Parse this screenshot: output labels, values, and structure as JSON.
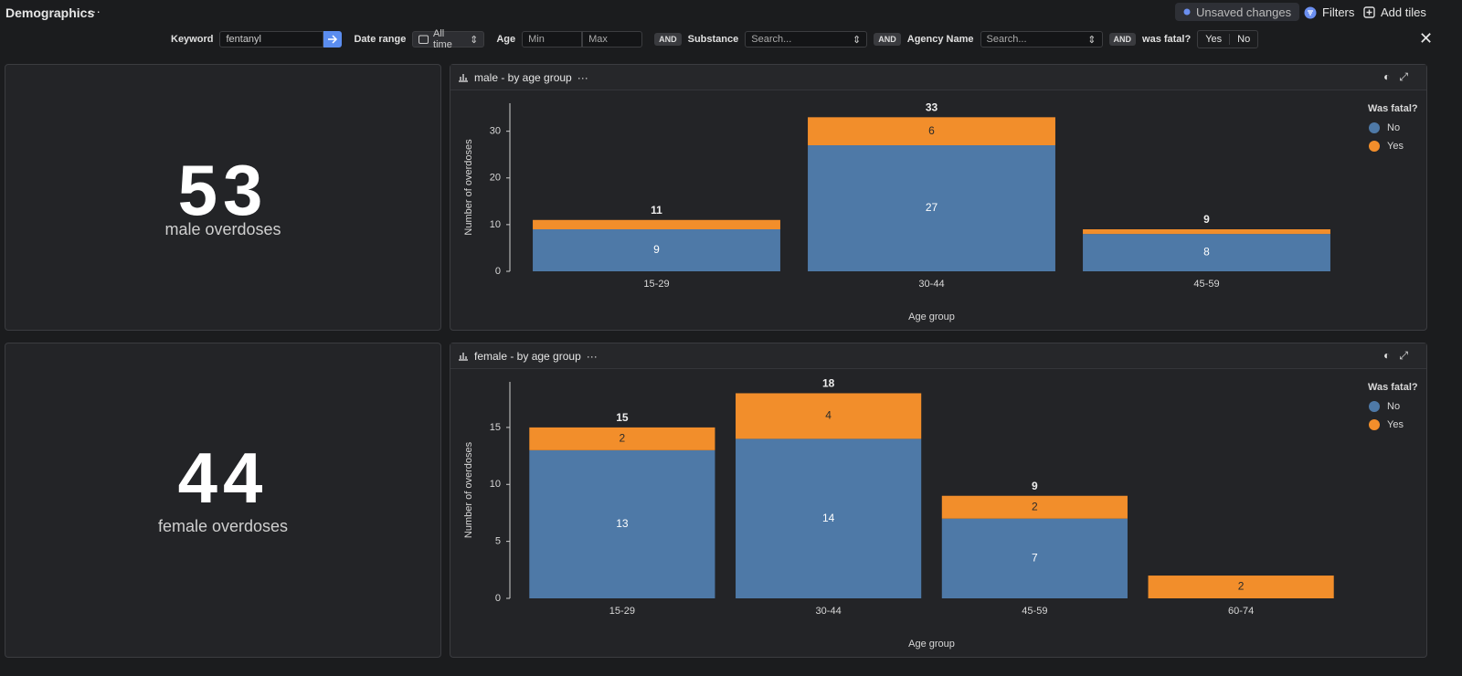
{
  "header": {
    "title": "Demographics",
    "status": "Unsaved changes",
    "filters_button": "Filters",
    "add_tiles_button": "Add tiles"
  },
  "filters": {
    "keyword_label": "Keyword",
    "keyword_value": "fentanyl",
    "date_range_label": "Date range",
    "date_range_value": "All time",
    "age_label": "Age",
    "age_min_placeholder": "Min",
    "age_max_placeholder": "Max",
    "connectors": [
      "AND",
      "AND",
      "AND"
    ],
    "substance_label": "Substance",
    "substance_placeholder": "Search...",
    "agency_label": "Agency Name",
    "agency_placeholder": "Search...",
    "fatal_label": "was fatal?",
    "fatal_options": [
      "Yes",
      "No"
    ]
  },
  "kpis": [
    {
      "value": 53,
      "label": "male overdoses"
    },
    {
      "value": 44,
      "label": "female overdoses"
    }
  ],
  "chart_data": [
    {
      "type": "bar",
      "stacked": true,
      "title": "male - by age group",
      "xlabel": "Age group",
      "ylabel": "Number of overdoses",
      "categories": [
        "15-29",
        "30-44",
        "45-59"
      ],
      "series": [
        {
          "name": "No",
          "color": "#4e79a7",
          "values": [
            9,
            27,
            8
          ]
        },
        {
          "name": "Yes",
          "color": "#f28e2b",
          "values": [
            2,
            6,
            1
          ]
        }
      ],
      "totals": [
        11,
        33,
        9
      ],
      "ylim": [
        0,
        36
      ],
      "yticks": [
        0,
        10,
        20,
        30
      ],
      "legend_title": "Was fatal?",
      "legend": "right",
      "grid": false
    },
    {
      "type": "bar",
      "stacked": true,
      "title": "female - by age group",
      "xlabel": "Age group",
      "ylabel": "Number of overdoses",
      "categories": [
        "15-29",
        "30-44",
        "45-59",
        "60-74"
      ],
      "series": [
        {
          "name": "No",
          "color": "#4e79a7",
          "values": [
            13,
            14,
            7,
            null
          ]
        },
        {
          "name": "Yes",
          "color": "#f28e2b",
          "values": [
            2,
            4,
            2,
            2
          ]
        }
      ],
      "totals": [
        15,
        18,
        9,
        null
      ],
      "ylim": [
        0,
        19
      ],
      "yticks": [
        0,
        5,
        10,
        15
      ],
      "legend_title": "Was fatal?",
      "legend": "right",
      "grid": false
    }
  ]
}
